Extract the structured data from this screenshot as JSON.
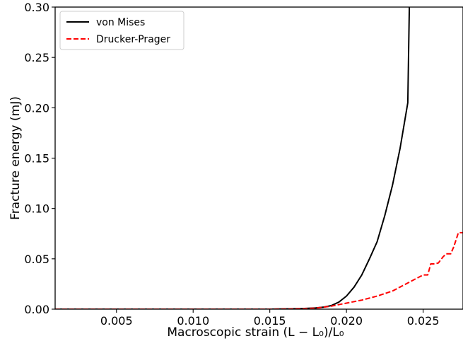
{
  "chart_data": {
    "type": "line",
    "title": "",
    "xlabel": "Macroscopic strain (L − L₀)/L₀",
    "ylabel": "Fracture energy (mJ)",
    "xlim": [
      0.001,
      0.0276
    ],
    "ylim": [
      0.0,
      0.3
    ],
    "xticks": [
      "0.005",
      "0.010",
      "0.015",
      "0.020",
      "0.025"
    ],
    "yticks": [
      "0.00",
      "0.05",
      "0.10",
      "0.15",
      "0.20",
      "0.25",
      "0.30"
    ],
    "grid": false,
    "legend_position": "top-left",
    "series": [
      {
        "name": "von Mises",
        "color": "#000000",
        "dash": "solid",
        "x": [
          0.001,
          0.005,
          0.01,
          0.015,
          0.017,
          0.018,
          0.0185,
          0.019,
          0.0195,
          0.02,
          0.0205,
          0.021,
          0.0215,
          0.022,
          0.0225,
          0.023,
          0.0235,
          0.024,
          0.0241
        ],
        "y": [
          0.0,
          0.0,
          0.0,
          0.0,
          0.0005,
          0.0012,
          0.002,
          0.0035,
          0.007,
          0.013,
          0.022,
          0.034,
          0.05,
          0.067,
          0.093,
          0.123,
          0.16,
          0.205,
          0.3
        ]
      },
      {
        "name": "Drucker-Prager",
        "color": "#ff0000",
        "dash": "dashed",
        "x": [
          0.001,
          0.005,
          0.01,
          0.015,
          0.017,
          0.018,
          0.019,
          0.02,
          0.021,
          0.022,
          0.023,
          0.0235,
          0.024,
          0.0245,
          0.025,
          0.0253,
          0.0255,
          0.0258,
          0.026,
          0.0263,
          0.0265,
          0.0268,
          0.027,
          0.0273,
          0.0276
        ],
        "y": [
          0.0,
          0.0,
          0.0,
          0.0,
          0.0005,
          0.001,
          0.003,
          0.006,
          0.009,
          0.013,
          0.018,
          0.022,
          0.026,
          0.03,
          0.034,
          0.034,
          0.045,
          0.045,
          0.046,
          0.052,
          0.055,
          0.055,
          0.062,
          0.076,
          0.076
        ]
      }
    ]
  }
}
